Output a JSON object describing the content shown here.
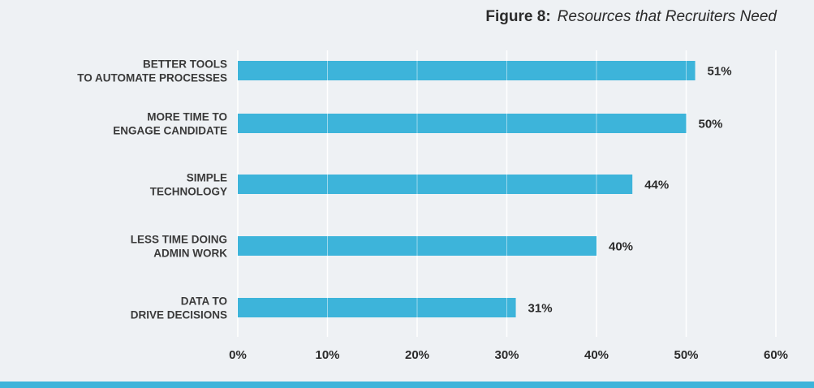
{
  "figure": {
    "number": "Figure 8:",
    "title": "Resources that Recruiters Need"
  },
  "colors": {
    "bar": "#3db4da",
    "background": "#eef1f4",
    "grid": "#ffffff",
    "band": "#3db4da"
  },
  "chart_data": {
    "type": "bar",
    "orientation": "horizontal",
    "title": "Resources that Recruiters Need",
    "categories": [
      [
        "BETTER TOOLS",
        "TO AUTOMATE PROCESSES"
      ],
      [
        "MORE TIME TO",
        "ENGAGE CANDIDATE"
      ],
      [
        "SIMPLE",
        "TECHNOLOGY"
      ],
      [
        "LESS TIME DOING",
        "ADMIN WORK"
      ],
      [
        "DATA TO",
        "DRIVE DECISIONS"
      ]
    ],
    "values": [
      51,
      50,
      44,
      40,
      31
    ],
    "value_labels": [
      "51%",
      "50%",
      "44%",
      "40%",
      "31%"
    ],
    "xlim": [
      0,
      60
    ],
    "xticks": [
      0,
      10,
      20,
      30,
      40,
      50,
      60
    ],
    "xtick_labels": [
      "0%",
      "10%",
      "20%",
      "30%",
      "40%",
      "50%",
      "60%"
    ],
    "grid": "vertical",
    "legend": "none"
  }
}
